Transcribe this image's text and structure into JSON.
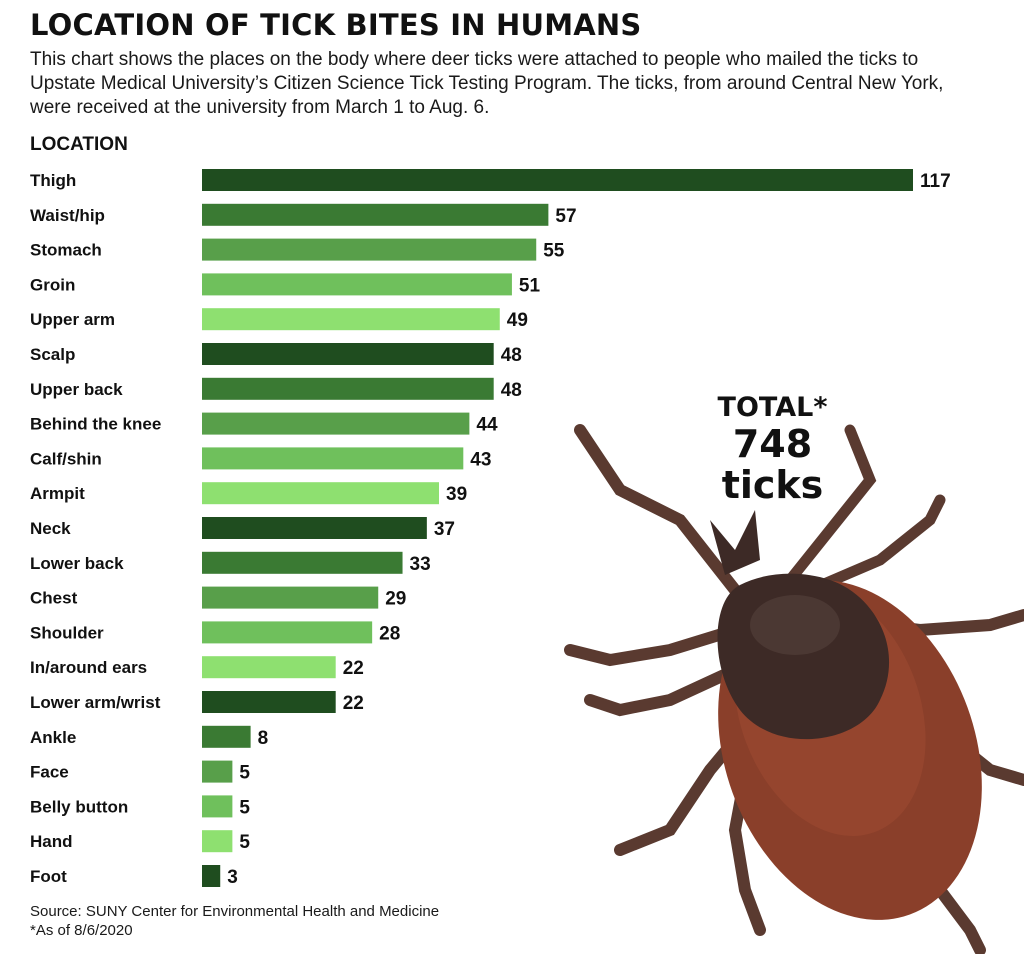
{
  "header": {
    "title": "LOCATION OF TICK BITES IN HUMANS",
    "subtitle": "This chart shows the places on the body where deer ticks were attached to people who mailed the ticks to Upstate Medical University’s Citizen Science Tick Testing Program. The ticks, from around Central New York, were received at the university from March 1 to Aug. 6."
  },
  "total": {
    "label": "TOTAL*",
    "number": "748",
    "unit": "ticks"
  },
  "footer": {
    "source": "Source: SUNY Center for Environmental Health and Medicine",
    "note": "*As of 8/6/2020"
  },
  "colors": {
    "cycle": [
      "#1f4d1f",
      "#3a7a33",
      "#589f4a",
      "#6fc05c",
      "#8ee070"
    ],
    "tick_body": "#3d2a26",
    "tick_abdomen": "#8a3f2a",
    "tick_legs": "#5a3a30"
  },
  "chart_data": {
    "type": "bar",
    "orientation": "horizontal",
    "ylabel": "LOCATION",
    "categories": [
      "Thigh",
      "Waist/hip",
      "Stomach",
      "Groin",
      "Upper arm",
      "Scalp",
      "Upper back",
      "Behind the knee",
      "Calf/shin",
      "Armpit",
      "Neck",
      "Lower back",
      "Chest",
      "Shoulder",
      "In/around ears",
      "Lower arm/wrist",
      "Ankle",
      "Face",
      "Belly button",
      "Hand",
      "Foot"
    ],
    "values": [
      117,
      57,
      55,
      51,
      49,
      48,
      48,
      44,
      43,
      39,
      37,
      33,
      29,
      28,
      22,
      22,
      8,
      5,
      5,
      5,
      3
    ],
    "xlim": [
      0,
      117
    ],
    "grid": false,
    "legend": "none"
  }
}
